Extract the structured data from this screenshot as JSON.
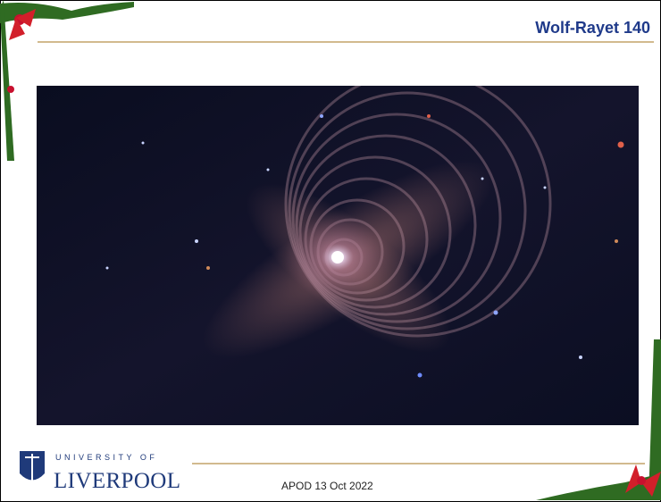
{
  "header": {
    "title": "Wolf-Rayet 140"
  },
  "logo": {
    "line1": "UNIVERSITY OF",
    "line2": "LIVERPOOL"
  },
  "footer": {
    "caption": "APOD 13 Oct 2022"
  }
}
